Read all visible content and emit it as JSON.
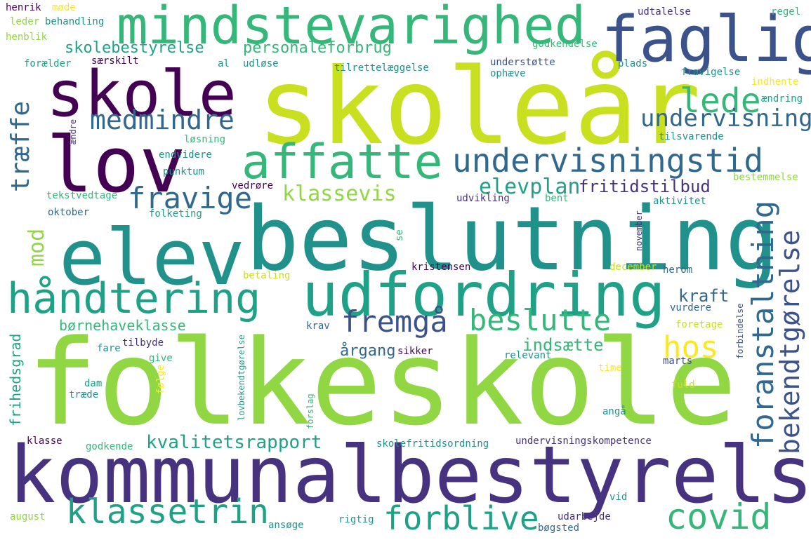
{
  "palette": {
    "dark_purple": "#440154",
    "indigo": "#3b528b",
    "blue": "#31688e",
    "slate": "#46327e",
    "teal": "#21918c",
    "teal_light": "#1fa187",
    "green": "#35b779",
    "lime": "#90d743",
    "yellow_green": "#c8e020",
    "yellow": "#fde725"
  },
  "words": {
    "skolear": "skoleår",
    "folkeskole": "folkeskole",
    "beslutning": "beslutning",
    "kommunalbestyrelse": "kommunalbestyrelse",
    "elev": "elev",
    "lov": "lov",
    "skole": "skole",
    "faglig": "faglig",
    "mindstevarighed": "mindstevarighed",
    "udfordring": "udfordring",
    "handtering": "håndtering",
    "affatte": "affatte",
    "undervisningstid": "undervisningstid",
    "klassetrin": "klassetrin",
    "forblive": "forblive",
    "covid": "covid",
    "foranstaltning": "foranstaltning",
    "bekendtgorelse": "bekendtgørelse",
    "hos": "hos",
    "beslutte": "beslutte",
    "fremga": "fremgå",
    "lede": "lede",
    "medmindre": "medmindre",
    "undervisning": "undervisning",
    "traeffe": "træffe",
    "fravige": "fravige",
    "klassevis": "klassevis",
    "elevplan": "elevplan",
    "fritidstilbud": "fritidstilbud",
    "mod": "mod",
    "kvalitetsrapport": "kvalitetsrapport",
    "skolebestyrelse": "skolebestyrelse",
    "personaleforbrug": "personaleforbrug",
    "bornehaveklasse": "børnehaveklasse",
    "argang": "årgang",
    "indsaette": "indsætte",
    "kraft": "kraft",
    "frihedsgrad": "frihedsgrad",
    "henrik": "henrik",
    "mode": "møde",
    "leder": "leder",
    "behandling": "behandling",
    "henblik": "henblik",
    "foraelder": "forælder",
    "saerskilt": "særskilt",
    "al": "al",
    "udlose": "udløse",
    "tilrettelaeggelse": "tilrettelæggelse",
    "udtalelse": "udtalelse",
    "godkendelse": "godkendelse",
    "regel": "regel",
    "understotte": "understøtte",
    "ophaeve": "ophæve",
    "plads": "plads",
    "fravigelse": "fravigelse",
    "indhente": "indhente",
    "aendring": "ændring",
    "aendre": "ændre",
    "losning": "løsning",
    "tilsvarende": "tilsvarende",
    "endvidere": "endvidere",
    "punktum": "punktum",
    "bestemmelse": "bestemmelse",
    "tekstvedtage": "tekstvedtage",
    "vedrore": "vedrøre",
    "udvikling": "udvikling",
    "bent": "bent",
    "aktivitet": "aktivitet",
    "november": "november",
    "oktober": "oktober",
    "folketing": "folketing",
    "se": "se",
    "kristensen": "kristensen",
    "december": "december",
    "betaling": "betaling",
    "herom": "herom",
    "vurdere": "vurdere",
    "krav": "krav",
    "foretage": "foretage",
    "forbindelse": "forbindelse",
    "fare": "fare",
    "tilbyde": "tilbyde",
    "give": "give",
    "lovbekendtgorelse": "lovbekendtgørelse",
    "sikker": "sikker",
    "relevant": "relevant",
    "marts": "marts",
    "dam": "dam",
    "traede": "træde",
    "folge": "følge",
    "time": "time",
    "fuld": "fuld",
    "anga": "angå",
    "forslag": "forslag",
    "klasse": "klasse",
    "godkende": "godkende",
    "skolefritidsordning": "skolefritidsordning",
    "undervisningskompetence": "undervisningskompetence",
    "vid": "vid",
    "august": "august",
    "ansoge": "ansøge",
    "rigtig": "rigtig",
    "udarbejde": "udarbejde",
    "bogsted": "bøgsted"
  }
}
